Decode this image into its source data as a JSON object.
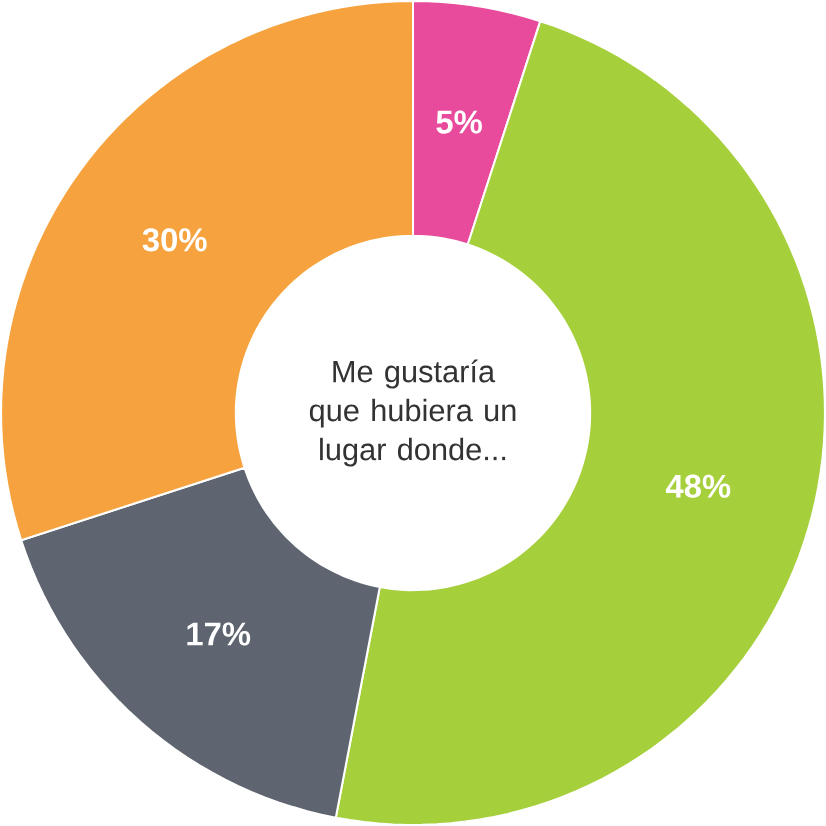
{
  "chart_data": {
    "type": "donut",
    "title": "Me gustaría que hubiera un lugar donde...",
    "categories": [
      null,
      null,
      null,
      null
    ],
    "values": [
      5,
      48,
      17,
      30
    ],
    "colors": [
      "#e84a9c",
      "#a6cf3c",
      "#5e6570",
      "#f6a33f"
    ],
    "value_labels": [
      "5%",
      "48%",
      "17%",
      "30%"
    ]
  }
}
